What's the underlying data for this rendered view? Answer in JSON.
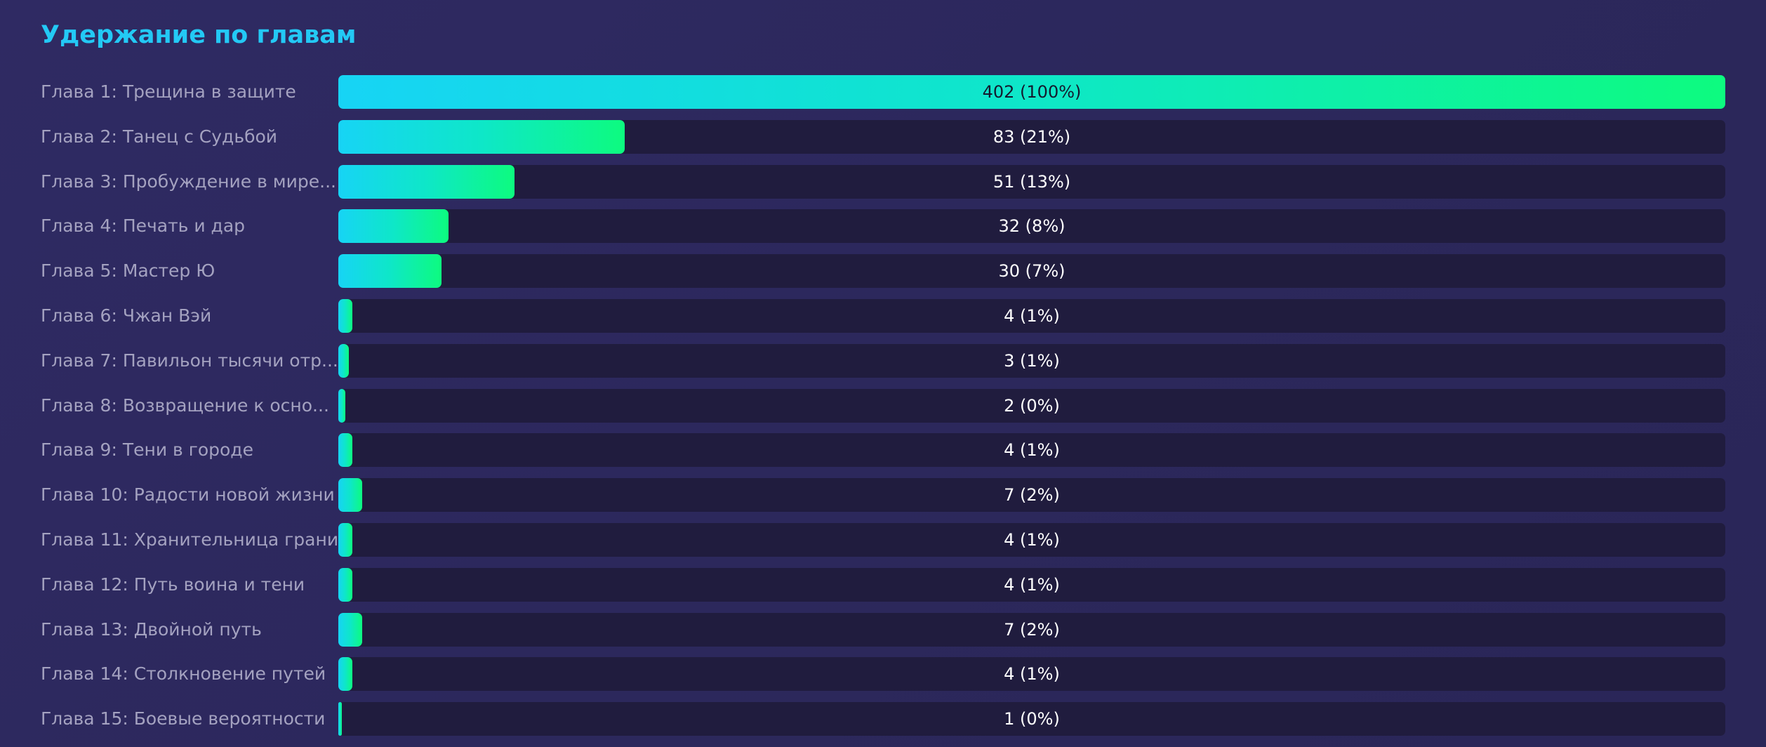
{
  "chart_data": {
    "type": "bar",
    "orientation": "horizontal",
    "title": "Удержание по главам",
    "categories": [
      "Глава 1: Трещина в защите",
      "Глава 2: Танец с Судьбой",
      "Глава 3: Пробуждение в мире...",
      "Глава 4: Печать и дар",
      "Глава 5: Мастер Ю",
      "Глава 6: Чжан Вэй",
      "Глава 7: Павильон тысячи отр...",
      "Глава 8: Возвращение к осно...",
      "Глава 9: Тени в городе",
      "Глава 10: Радости новой жизни",
      "Глава 11: Хранительница грани",
      "Глава 12: Путь воина и тени",
      "Глава 13: Двойной путь",
      "Глава 14: Столкновение путей",
      "Глава 15: Боевые вероятности"
    ],
    "values": [
      402,
      83,
      51,
      32,
      30,
      4,
      3,
      2,
      4,
      7,
      4,
      4,
      7,
      4,
      1
    ],
    "value_labels": [
      "402 (100%)",
      "83 (21%)",
      "51 (13%)",
      "32 (8%)",
      "30 (7%)",
      "4 (1%)",
      "3 (1%)",
      "2 (0%)",
      "4 (1%)",
      "7 (2%)",
      "4 (1%)",
      "4 (1%)",
      "7 (2%)",
      "4 (1%)",
      "1 (0%)"
    ],
    "xlim": [
      0,
      402
    ],
    "grid": false,
    "legend": "none"
  },
  "colors": {
    "background": "#2d2960",
    "title": "#23c9f5",
    "track": "#201c3e",
    "gradient_start": "#17d4f5",
    "gradient_end": "#0dfb7f",
    "label": "#a4a2c0",
    "value_text": "#ffffff"
  }
}
